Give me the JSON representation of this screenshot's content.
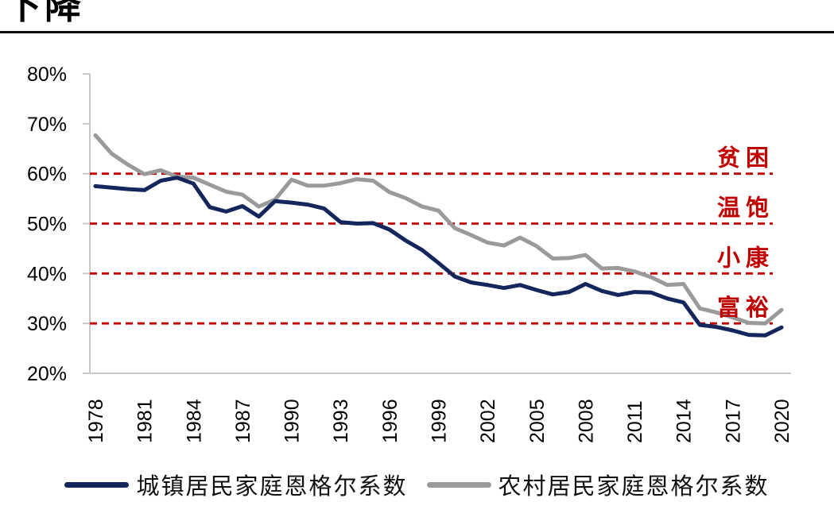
{
  "page": {
    "title_fragment": "下降"
  },
  "chart_data": {
    "type": "line",
    "x": [
      1978,
      1979,
      1980,
      1981,
      1982,
      1983,
      1984,
      1985,
      1986,
      1987,
      1988,
      1989,
      1990,
      1991,
      1992,
      1993,
      1994,
      1995,
      1996,
      1997,
      1998,
      1999,
      2000,
      2001,
      2002,
      2003,
      2004,
      2005,
      2006,
      2007,
      2008,
      2009,
      2010,
      2011,
      2012,
      2013,
      2014,
      2015,
      2016,
      2017,
      2018,
      2019,
      2020
    ],
    "series": [
      {
        "name": "城镇居民家庭恩格尔系数",
        "color": "#14265c",
        "values": [
          57.5,
          57.2,
          56.9,
          56.7,
          58.6,
          59.2,
          58.0,
          53.3,
          52.4,
          53.5,
          51.4,
          54.5,
          54.2,
          53.8,
          53.0,
          50.3,
          50.0,
          50.1,
          48.8,
          46.6,
          44.7,
          42.1,
          39.4,
          38.2,
          37.7,
          37.1,
          37.7,
          36.7,
          35.8,
          36.3,
          37.9,
          36.5,
          35.7,
          36.3,
          36.2,
          35.0,
          34.2,
          29.7,
          29.3,
          28.6,
          27.7,
          27.6,
          29.2
        ]
      },
      {
        "name": "农村居民家庭恩格尔系数",
        "color": "#9a9a9a",
        "values": [
          67.7,
          64.0,
          61.8,
          59.9,
          60.7,
          59.4,
          59.2,
          57.8,
          56.4,
          55.8,
          53.4,
          54.8,
          58.8,
          57.6,
          57.6,
          58.1,
          58.9,
          58.6,
          56.3,
          55.1,
          53.4,
          52.6,
          49.1,
          47.7,
          46.2,
          45.6,
          47.2,
          45.5,
          43.0,
          43.1,
          43.7,
          41.0,
          41.1,
          40.4,
          39.3,
          37.7,
          37.9,
          33.0,
          32.2,
          31.2,
          30.1,
          30.0,
          32.7
        ]
      }
    ],
    "ylim": [
      20,
      80
    ],
    "y_ticks": [
      {
        "value": 80,
        "label": "80%"
      },
      {
        "value": 70,
        "label": "70%"
      },
      {
        "value": 60,
        "label": "60%"
      },
      {
        "value": 50,
        "label": "50%"
      },
      {
        "value": 40,
        "label": "40%"
      },
      {
        "value": 30,
        "label": "30%"
      },
      {
        "value": 20,
        "label": "20%"
      }
    ],
    "x_ticks": [
      {
        "value": 1978,
        "label": "1978"
      },
      {
        "value": 1981,
        "label": "1981"
      },
      {
        "value": 1984,
        "label": "1984"
      },
      {
        "value": 1987,
        "label": "1987"
      },
      {
        "value": 1990,
        "label": "1990"
      },
      {
        "value": 1993,
        "label": "1993"
      },
      {
        "value": 1996,
        "label": "1996"
      },
      {
        "value": 1999,
        "label": "1999"
      },
      {
        "value": 2002,
        "label": "2002"
      },
      {
        "value": 2005,
        "label": "2005"
      },
      {
        "value": 2008,
        "label": "2008"
      },
      {
        "value": 2011,
        "label": "2011"
      },
      {
        "value": 2014,
        "label": "2014"
      },
      {
        "value": 2017,
        "label": "2017"
      },
      {
        "value": 2020,
        "label": "2020"
      }
    ],
    "reference_lines": [
      {
        "value": 60,
        "label": "贫困"
      },
      {
        "value": 50,
        "label": "温饱"
      },
      {
        "value": 40,
        "label": "小康"
      },
      {
        "value": 30,
        "label": "富裕"
      }
    ],
    "reference_color": "#c00000",
    "axis_color": "#c8c8c8",
    "tick_label_color": "#000000",
    "grid": false,
    "legend_position": "bottom",
    "xlabel": "",
    "ylabel": ""
  }
}
